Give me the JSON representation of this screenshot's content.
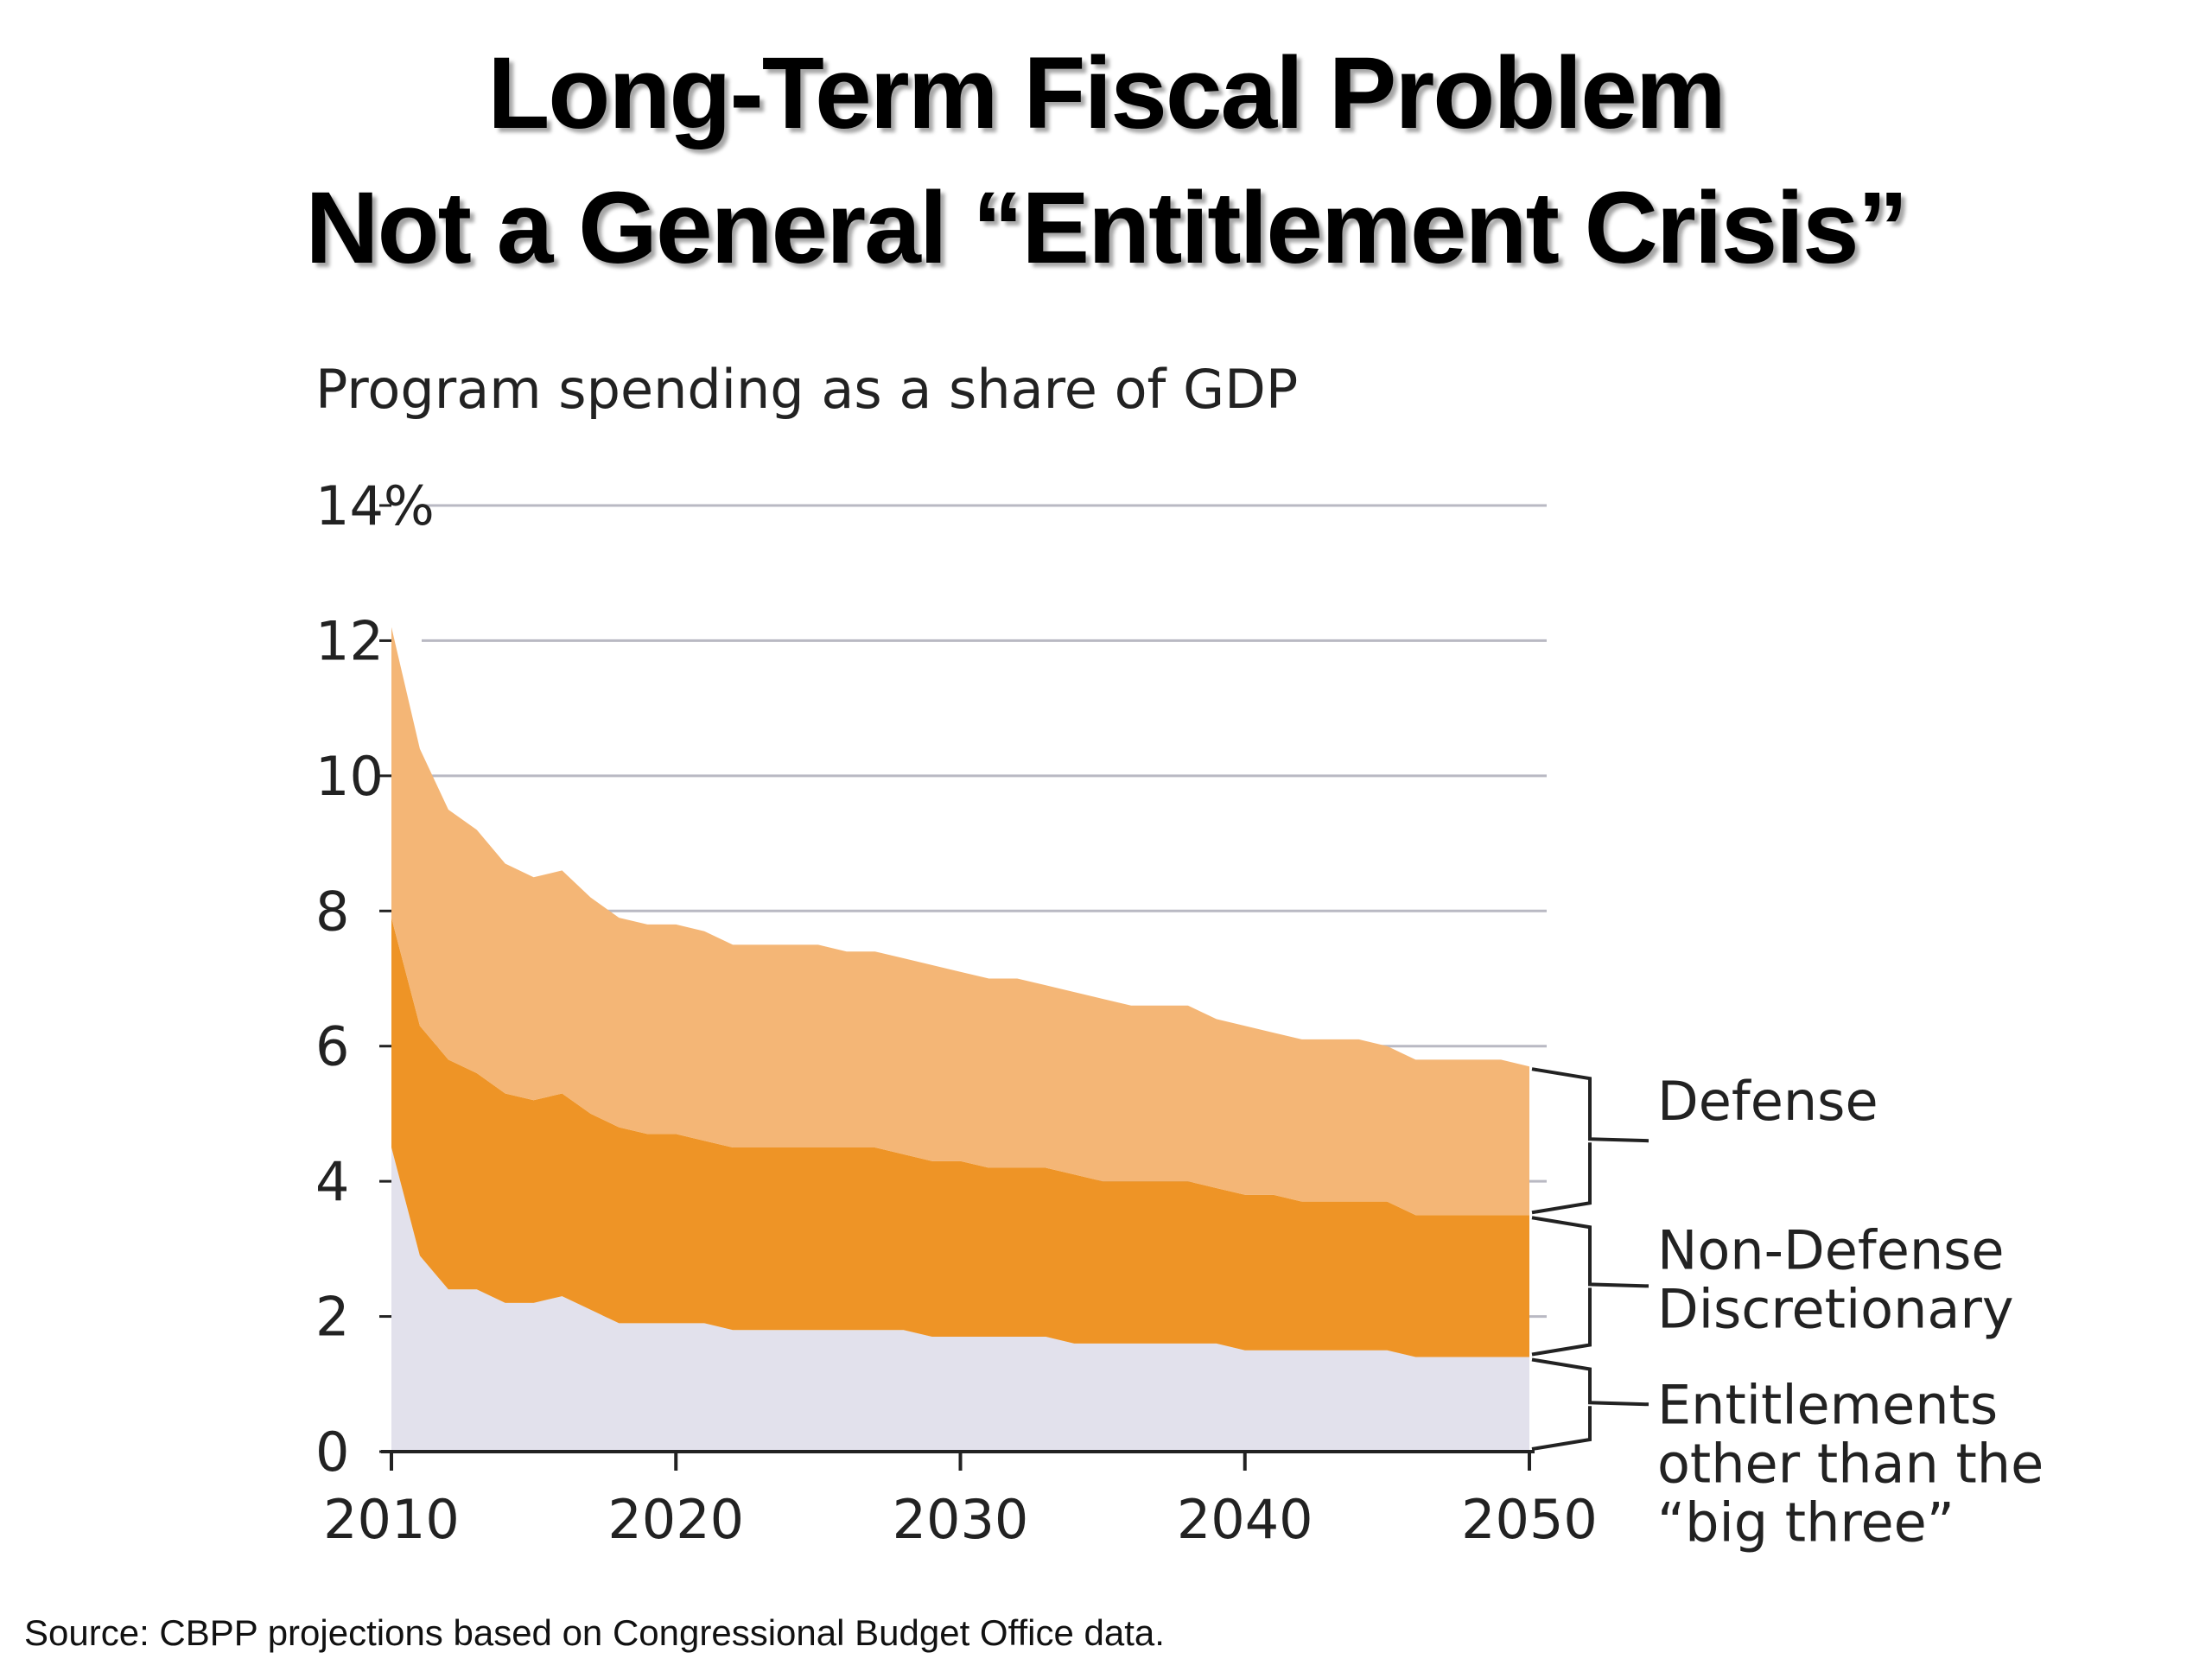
{
  "slide": {
    "title_line1": "Long-Term Fiscal Problem",
    "title_line2": "Not a General “Entitlement Crisis”",
    "source": "Source: CBPP projections based on Congressional Budget Office data."
  },
  "chart_data": {
    "type": "area",
    "stacked": true,
    "title": "Program spending as a share of GDP",
    "xlabel": "",
    "ylabel": "",
    "xlim": [
      2010,
      2050
    ],
    "ylim": [
      0,
      14
    ],
    "x_ticks": [
      2010,
      2020,
      2030,
      2040,
      2050
    ],
    "x_tick_labels": [
      "2010",
      "2020",
      "2030",
      "2040",
      "2050"
    ],
    "y_ticks": [
      0,
      2,
      4,
      6,
      8,
      10,
      12,
      14
    ],
    "y_tick_labels": [
      "0",
      "2",
      "4",
      "6",
      "8",
      "10",
      "12",
      "14%"
    ],
    "grid": "horizontal",
    "x": [
      2010,
      2011,
      2012,
      2013,
      2014,
      2015,
      2016,
      2017,
      2018,
      2019,
      2020,
      2021,
      2022,
      2023,
      2024,
      2025,
      2026,
      2027,
      2028,
      2029,
      2030,
      2031,
      2032,
      2033,
      2034,
      2035,
      2036,
      2037,
      2038,
      2039,
      2040,
      2041,
      2042,
      2043,
      2044,
      2045,
      2046,
      2047,
      2048,
      2049,
      2050
    ],
    "series": [
      {
        "name": "Entitlements other than the “big three”",
        "label_lines": [
          "Entitlements",
          "other than the",
          "“big three”"
        ],
        "color": "#e2e1ec",
        "values": [
          4.5,
          2.9,
          2.4,
          2.4,
          2.2,
          2.2,
          2.3,
          2.1,
          1.9,
          1.9,
          1.9,
          1.9,
          1.8,
          1.8,
          1.8,
          1.8,
          1.8,
          1.8,
          1.8,
          1.7,
          1.7,
          1.7,
          1.7,
          1.7,
          1.6,
          1.6,
          1.6,
          1.6,
          1.6,
          1.6,
          1.5,
          1.5,
          1.5,
          1.5,
          1.5,
          1.5,
          1.4,
          1.4,
          1.4,
          1.4,
          1.4
        ]
      },
      {
        "name": "Non-Defense Discretionary",
        "label_lines": [
          "Non-Defense",
          "Discretionary"
        ],
        "color": "#ee9426",
        "values": [
          3.4,
          3.4,
          3.4,
          3.2,
          3.1,
          3.0,
          3.0,
          2.9,
          2.9,
          2.8,
          2.8,
          2.7,
          2.7,
          2.7,
          2.7,
          2.7,
          2.7,
          2.7,
          2.6,
          2.6,
          2.6,
          2.5,
          2.5,
          2.5,
          2.5,
          2.4,
          2.4,
          2.4,
          2.4,
          2.3,
          2.3,
          2.3,
          2.2,
          2.2,
          2.2,
          2.2,
          2.1,
          2.1,
          2.1,
          2.1,
          2.1
        ]
      },
      {
        "name": "Defense",
        "label_lines": [
          "Defense"
        ],
        "color": "#f4b676",
        "values": [
          4.3,
          4.1,
          3.7,
          3.6,
          3.4,
          3.3,
          3.3,
          3.2,
          3.1,
          3.1,
          3.1,
          3.1,
          3.0,
          3.0,
          3.0,
          3.0,
          2.9,
          2.9,
          2.9,
          2.9,
          2.8,
          2.8,
          2.8,
          2.7,
          2.7,
          2.7,
          2.6,
          2.6,
          2.6,
          2.5,
          2.5,
          2.4,
          2.4,
          2.4,
          2.4,
          2.3,
          2.3,
          2.3,
          2.3,
          2.3,
          2.2
        ]
      }
    ],
    "legend": "right, bracketed labels"
  }
}
